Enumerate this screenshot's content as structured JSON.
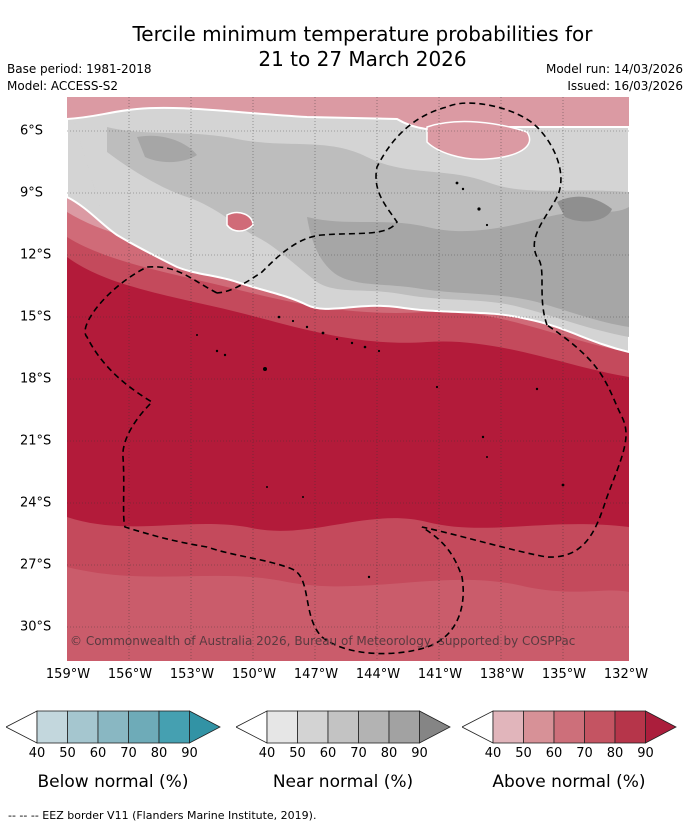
{
  "title": {
    "line1": "Tercile minimum temperature probabilities for",
    "line2": "21 to 27 March 2026"
  },
  "meta": {
    "base_period": "Base period: 1981-2018",
    "model": "Model: ACCESS-S2",
    "model_run": "Model run: 14/03/2026",
    "issued": "Issued: 16/03/2026"
  },
  "map": {
    "lon_labels": [
      "159°W",
      "156°W",
      "153°W",
      "150°W",
      "147°W",
      "144°W",
      "141°W",
      "138°W",
      "135°W",
      "132°W"
    ],
    "lat_labels": [
      "6°S",
      "9°S",
      "12°S",
      "15°S",
      "18°S",
      "21°S",
      "24°S",
      "27°S",
      "30°S"
    ],
    "copyright": "© Commonwealth of Australia 2026, Bureau of Meteorology, supported by COSPPac",
    "category_colors": {
      "above_normal_80_90": "#b31b3a",
      "above_normal_70_80": "#c44a5c",
      "above_normal_60_70": "#d06b78",
      "above_normal_50_60": "#db9aa3",
      "near_normal_70_80": "#a6a6a6",
      "near_normal_60_70": "#bdbdbd",
      "near_normal_50_60": "#d4d4d4",
      "eez_line": "#000000"
    }
  },
  "colorbars": [
    {
      "title": "Below normal (%)",
      "ticks": [
        "40",
        "50",
        "60",
        "70",
        "80",
        "90"
      ],
      "colors": [
        "#ffffff",
        "#c3d7dd",
        "#a5c6cf",
        "#89b7c2",
        "#6eabb8",
        "#45a0b1",
        "#3293a5"
      ]
    },
    {
      "title": "Near normal (%)",
      "ticks": [
        "40",
        "50",
        "60",
        "70",
        "80",
        "90"
      ],
      "colors": [
        "#ffffff",
        "#e6e6e6",
        "#d3d3d3",
        "#c3c3c3",
        "#b3b3b3",
        "#a2a2a2",
        "#858585"
      ]
    },
    {
      "title": "Above normal (%)",
      "ticks": [
        "40",
        "50",
        "60",
        "70",
        "80",
        "90"
      ],
      "colors": [
        "#ffffff",
        "#e1b5bb",
        "#d79197",
        "#cd6f7a",
        "#c45462",
        "#b6354a",
        "#ab1e3c"
      ]
    }
  ],
  "footer": "-- -- -- EEZ border V11 (Flanders Marine Institute, 2019)."
}
